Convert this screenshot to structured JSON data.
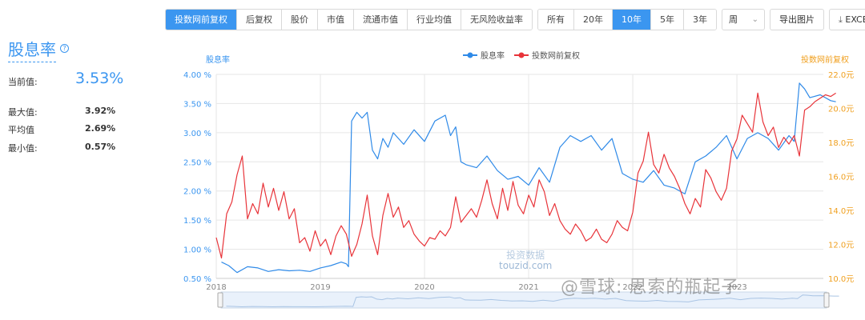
{
  "toolbar": {
    "price_group": [
      "投数网前复权",
      "后复权",
      "股价",
      "市值",
      "流通市值",
      "行业均值",
      "无风险收益率"
    ],
    "range_group": [
      "所有",
      "20年",
      "10年",
      "5年",
      "3年"
    ],
    "period_select": "周",
    "export_image": "导出图片",
    "excel": "EXCEL",
    "excel_icon": "download-icon"
  },
  "left_panel": {
    "title": "股息率",
    "help_icon": "question-circle-icon",
    "current_label": "当前值:",
    "current_value": "3.53%",
    "max_label": "最大值:",
    "max_value": "3.92%",
    "avg_label": "平均值",
    "avg_value": "2.69%",
    "min_label": "最小值:",
    "min_value": "0.57%"
  },
  "watermark": {
    "brand": "投资数据",
    "site": "touzid.com",
    "source": "@雪球: 思索的瓶起子"
  },
  "chart_data": {
    "type": "line",
    "legend_position": "top-center",
    "grid": true,
    "x_ticks": [
      "2018",
      "2019",
      "2020",
      "2021",
      "2022",
      "2023"
    ],
    "xlim": [
      "2018-01",
      "2023-10"
    ],
    "y_left": {
      "label": "股息率",
      "ticks": [
        "0.50 %",
        "1.00 %",
        "1.50 %",
        "2.00 %",
        "2.50 %",
        "3.00 %",
        "3.50 %",
        "4.00 %"
      ],
      "lim": [
        0.5,
        4.0
      ],
      "color": "#3b96f0"
    },
    "y_right": {
      "label": "投数网前复权",
      "ticks": [
        "10.0元",
        "12.0元",
        "14.0元",
        "16.0元",
        "18.0元",
        "20.0元",
        "22.0元"
      ],
      "lim": [
        10,
        22
      ],
      "color": "#f0a020"
    },
    "series": [
      {
        "name": "股息率",
        "axis": "left",
        "color": "#2f8ae8",
        "x": [
          2018.05,
          2018.12,
          2018.2,
          2018.3,
          2018.4,
          2018.5,
          2018.6,
          2018.7,
          2018.8,
          2018.9,
          2019.0,
          2019.1,
          2019.2,
          2019.25,
          2019.27,
          2019.3,
          2019.35,
          2019.4,
          2019.45,
          2019.5,
          2019.55,
          2019.6,
          2019.65,
          2019.7,
          2019.8,
          2019.9,
          2020.0,
          2020.1,
          2020.2,
          2020.25,
          2020.3,
          2020.35,
          2020.4,
          2020.5,
          2020.6,
          2020.7,
          2020.8,
          2020.9,
          2021.0,
          2021.1,
          2021.2,
          2021.3,
          2021.4,
          2021.5,
          2021.6,
          2021.7,
          2021.8,
          2021.9,
          2022.0,
          2022.1,
          2022.2,
          2022.3,
          2022.4,
          2022.5,
          2022.6,
          2022.7,
          2022.8,
          2022.9,
          2023.0,
          2023.1,
          2023.2,
          2023.3,
          2023.4,
          2023.5,
          2023.55,
          2023.6,
          2023.65,
          2023.7,
          2023.8,
          2023.9,
          2023.95
        ],
        "y": [
          0.78,
          0.72,
          0.6,
          0.7,
          0.68,
          0.62,
          0.65,
          0.63,
          0.64,
          0.62,
          0.68,
          0.72,
          0.78,
          0.75,
          0.7,
          3.2,
          3.35,
          3.25,
          3.35,
          2.7,
          2.55,
          2.9,
          2.75,
          3.0,
          2.8,
          3.05,
          2.85,
          3.2,
          3.3,
          2.95,
          3.1,
          2.5,
          2.45,
          2.4,
          2.6,
          2.35,
          2.2,
          2.25,
          2.1,
          2.4,
          2.15,
          2.75,
          2.95,
          2.85,
          2.95,
          2.7,
          2.9,
          2.3,
          2.2,
          2.15,
          2.35,
          2.1,
          2.05,
          1.95,
          2.5,
          2.6,
          2.75,
          2.95,
          2.55,
          2.9,
          3.0,
          2.9,
          2.7,
          2.95,
          2.85,
          3.85,
          3.75,
          3.6,
          3.65,
          3.55,
          3.53
        ]
      },
      {
        "name": "投数网前复权",
        "axis": "right",
        "color": "#e8343a",
        "x": [
          2018.0,
          2018.05,
          2018.1,
          2018.15,
          2018.2,
          2018.25,
          2018.3,
          2018.35,
          2018.4,
          2018.45,
          2018.5,
          2018.55,
          2018.6,
          2018.65,
          2018.7,
          2018.75,
          2018.8,
          2018.85,
          2018.9,
          2018.95,
          2019.0,
          2019.05,
          2019.1,
          2019.15,
          2019.2,
          2019.25,
          2019.3,
          2019.35,
          2019.4,
          2019.45,
          2019.5,
          2019.55,
          2019.6,
          2019.65,
          2019.7,
          2019.75,
          2019.8,
          2019.85,
          2019.9,
          2019.95,
          2020.0,
          2020.05,
          2020.1,
          2020.15,
          2020.2,
          2020.25,
          2020.3,
          2020.35,
          2020.4,
          2020.45,
          2020.5,
          2020.55,
          2020.6,
          2020.65,
          2020.7,
          2020.75,
          2020.8,
          2020.85,
          2020.9,
          2020.95,
          2021.0,
          2021.05,
          2021.1,
          2021.15,
          2021.2,
          2021.25,
          2021.3,
          2021.35,
          2021.4,
          2021.45,
          2021.5,
          2021.55,
          2021.6,
          2021.65,
          2021.7,
          2021.75,
          2021.8,
          2021.85,
          2021.9,
          2021.95,
          2022.0,
          2022.05,
          2022.1,
          2022.15,
          2022.2,
          2022.25,
          2022.3,
          2022.35,
          2022.4,
          2022.45,
          2022.5,
          2022.55,
          2022.6,
          2022.65,
          2022.7,
          2022.75,
          2022.8,
          2022.85,
          2022.9,
          2022.95,
          2023.0,
          2023.05,
          2023.1,
          2023.15,
          2023.2,
          2023.25,
          2023.3,
          2023.35,
          2023.4,
          2023.45,
          2023.5,
          2023.55,
          2023.6,
          2023.65,
          2023.7,
          2023.75,
          2023.8,
          2023.85,
          2023.9,
          2023.95
        ],
        "y": [
          12.4,
          11.2,
          13.8,
          14.5,
          16.1,
          17.2,
          13.5,
          14.4,
          13.8,
          15.6,
          14.2,
          15.3,
          14.0,
          15.1,
          13.5,
          14.1,
          12.1,
          12.4,
          11.6,
          12.8,
          11.9,
          12.3,
          11.4,
          12.5,
          13.1,
          12.6,
          11.3,
          12.0,
          13.2,
          14.9,
          12.5,
          11.4,
          13.7,
          15.0,
          13.6,
          14.2,
          13.0,
          13.4,
          12.6,
          12.2,
          11.9,
          12.4,
          12.3,
          12.8,
          12.5,
          13.0,
          14.8,
          13.3,
          13.7,
          14.1,
          13.6,
          14.6,
          15.8,
          14.4,
          13.5,
          15.3,
          14.0,
          15.7,
          14.3,
          13.8,
          14.9,
          14.2,
          15.8,
          15.1,
          13.7,
          14.4,
          13.4,
          12.9,
          12.6,
          13.2,
          12.8,
          12.2,
          12.4,
          12.9,
          12.3,
          12.1,
          12.6,
          13.4,
          13.0,
          12.8,
          13.9,
          16.2,
          16.9,
          18.6,
          16.7,
          16.2,
          17.3,
          16.5,
          16.0,
          15.3,
          14.4,
          13.8,
          14.7,
          14.2,
          16.4,
          15.9,
          15.1,
          14.6,
          15.3,
          17.5,
          18.2,
          19.6,
          19.1,
          18.6,
          20.9,
          19.2,
          18.4,
          18.9,
          17.7,
          18.3,
          17.9,
          18.4,
          17.2,
          19.9,
          20.1,
          20.4,
          20.6,
          20.8,
          20.7,
          20.9
        ]
      }
    ]
  }
}
